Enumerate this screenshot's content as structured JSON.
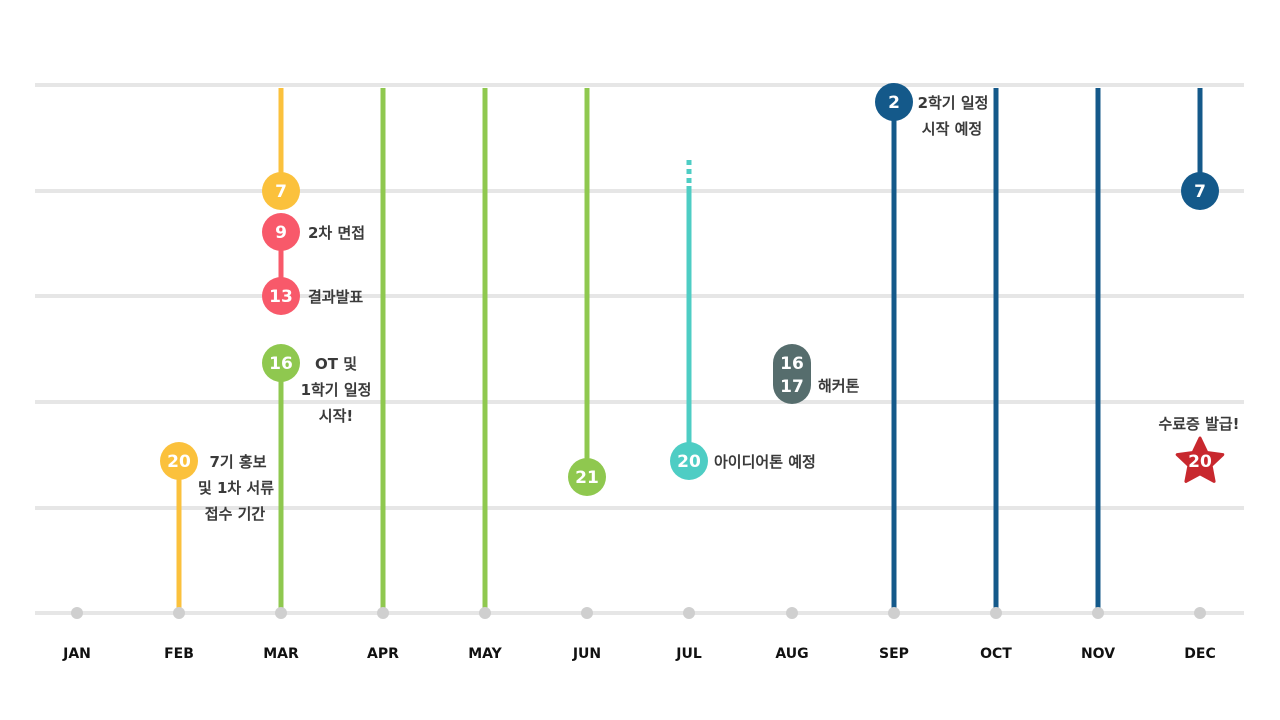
{
  "colors": {
    "grid": "#e6e6e6",
    "dot": "#cfcfcf",
    "yellow": "#fbc13c",
    "green": "#8fc84f",
    "red": "#f8596a",
    "teal": "#4ecdc4",
    "slate": "#566d6d",
    "navy": "#14598a",
    "star": "#c8282e",
    "text": "#3a3a3a"
  },
  "months": [
    "JAN",
    "FEB",
    "MAR",
    "APR",
    "MAY",
    "JUN",
    "JUL",
    "AUG",
    "SEP",
    "OCT",
    "NOV",
    "DEC"
  ],
  "events": [
    {
      "id": "feb-20",
      "month": "FEB",
      "day": "20",
      "color": "yellow",
      "lines": [
        "7기 홍보",
        "및 1차 서류",
        "접수 기간"
      ]
    },
    {
      "id": "mar-7",
      "month": "MAR",
      "day": "7",
      "color": "yellow",
      "lines": []
    },
    {
      "id": "mar-9",
      "month": "MAR",
      "day": "9",
      "color": "red",
      "lines": [
        "2차 면접"
      ]
    },
    {
      "id": "mar-13",
      "month": "MAR",
      "day": "13",
      "color": "red",
      "lines": [
        "결과발표"
      ]
    },
    {
      "id": "mar-16",
      "month": "MAR",
      "day": "16",
      "color": "green",
      "lines": [
        "OT 및",
        "1학기 일정",
        "시작!"
      ]
    },
    {
      "id": "jun-21",
      "month": "JUN",
      "day": "21",
      "color": "green",
      "lines": []
    },
    {
      "id": "jul-20",
      "month": "JUL",
      "day": "20",
      "color": "teal",
      "lines": [
        "아이디어톤 예정"
      ]
    },
    {
      "id": "aug-16-17",
      "month": "AUG",
      "day": "16",
      "day2": "17",
      "color": "slate",
      "lines": [
        "해커톤"
      ]
    },
    {
      "id": "sep-2",
      "month": "SEP",
      "day": "2",
      "color": "navy",
      "lines": [
        "2학기 일정",
        "시작 예정"
      ]
    },
    {
      "id": "dec-7",
      "month": "DEC",
      "day": "7",
      "color": "navy",
      "lines": []
    },
    {
      "id": "dec-20",
      "month": "DEC",
      "day": "20",
      "color": "star",
      "lines": [
        "수료증 발급!"
      ]
    }
  ]
}
